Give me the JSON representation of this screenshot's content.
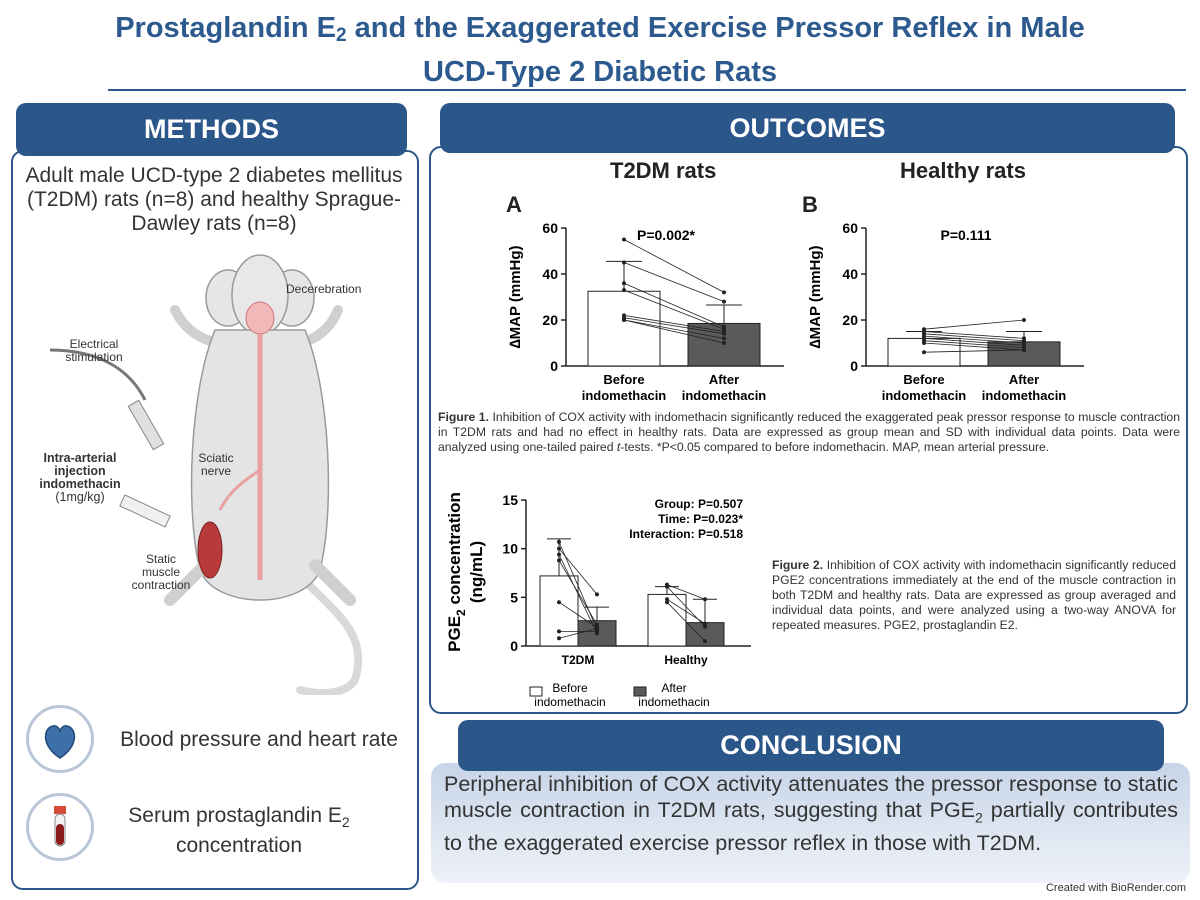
{
  "title": {
    "line1_pre": "Prostaglandin E",
    "line1_sub": "2",
    "line1_post": " and the Exaggerated Exercise Pressor Reflex in Male",
    "line2": "UCD-Type 2 Diabetic Rats"
  },
  "methods": {
    "heading": "METHODS",
    "subjects": "Adult male UCD-type 2 diabetes mellitus (T2DM) rats (n=8) and healthy Sprague-Dawley rats (n=8)",
    "labels": {
      "decerebration": "Decerebration",
      "electrical_line1": "Electrical",
      "electrical_line2": "stimulation",
      "sciatic_line1": "Sciatic",
      "sciatic_line2": "nerve",
      "injection_line1": "Intra-arterial",
      "injection_line2": "injection",
      "injection_line3": "indomethacin",
      "injection_line4": "(1mg/kg)",
      "static_line1": "Static",
      "static_line2": "muscle",
      "static_line3": "contraction"
    },
    "measure1": "Blood pressure and heart rate",
    "measure2_pre": "Serum prostaglandin E",
    "measure2_sub": "2",
    "measure2_line2": "concentration"
  },
  "outcomes": {
    "heading": "OUTCOMES",
    "figure1_caption_label": "Figure 1.",
    "figure1_caption": " Inhibition of COX activity with indomethacin significantly reduced the exaggerated peak pressor response to muscle contraction in T2DM rats and had no effect in healthy rats. Data are expressed as group mean and SD with individual data points. Data were analyzed using one-tailed paired ",
    "figure1_caption_italic": "t",
    "figure1_caption_end": "-tests. *P<0.05 compared to before indomethacin. MAP, mean arterial pressure.",
    "figure2_caption_label": "Figure 2.",
    "figure2_caption": " Inhibition of COX activity with indomethacin significantly reduced PGE2 concentrations immediately at the end of the muscle contraction in both T2DM and healthy rats. Data are expressed as group averaged and individual data points, and were analyzed using a two-way ANOVA for repeated measures. PGE2, prostaglandin E2."
  },
  "conclusion": {
    "heading": "CONCLUSION",
    "text_pre": "Peripheral inhibition of COX activity attenuates the pressor response to static muscle contraction in T2DM rats, suggesting that PGE",
    "text_sub": "2",
    "text_post": " partially contributes to the exaggerated exercise pressor reflex in those with T2DM."
  },
  "footer": "Created with BioRender.com",
  "colors": {
    "brand_blue": "#2b5689",
    "bar_after": "#5a5a5a",
    "bar_before": "#ffffff"
  },
  "chart_data": [
    {
      "type": "bar",
      "panel": "A",
      "heading": "T2DM rats",
      "ylabel": "∆MAP (mmHg)",
      "ylim": [
        0,
        60
      ],
      "yticks": [
        0,
        20,
        40,
        60
      ],
      "categories": [
        "Before indomethacin",
        "After indomethacin"
      ],
      "cat_line1": [
        "Before",
        "After"
      ],
      "cat_line2": [
        "indomethacin",
        "indomethacin"
      ],
      "means": [
        32.5,
        18.5
      ],
      "sd": [
        13,
        8
      ],
      "individual": [
        [
          55,
          45,
          36,
          33,
          22,
          21,
          20,
          20
        ],
        [
          32,
          28,
          17,
          16,
          15,
          14,
          12,
          10
        ]
      ],
      "annotation": "P=0.002*"
    },
    {
      "type": "bar",
      "panel": "B",
      "heading": "Healthy rats",
      "ylabel": "∆MAP (mmHg)",
      "ylim": [
        0,
        60
      ],
      "yticks": [
        0,
        20,
        40,
        60
      ],
      "categories": [
        "Before indomethacin",
        "After indomethacin"
      ],
      "cat_line1": [
        "Before",
        "After"
      ],
      "cat_line2": [
        "indomethacin",
        "indomethacin"
      ],
      "means": [
        12,
        10.5
      ],
      "sd": [
        3,
        4.5
      ],
      "individual": [
        [
          16,
          15,
          14,
          13,
          12,
          11,
          10,
          6
        ],
        [
          20,
          12,
          11,
          10,
          9,
          8,
          7,
          7
        ]
      ],
      "annotation": "P=0.111"
    },
    {
      "type": "bar",
      "ylabel_pre": "PGE",
      "ylabel_sub": "2",
      "ylabel_post": " concentration",
      "ylabel_line2": "(ng/mL)",
      "ylim": [
        0,
        15
      ],
      "yticks": [
        0,
        5,
        10,
        15
      ],
      "categories": [
        "T2DM",
        "Healthy"
      ],
      "series": [
        {
          "name": "Before indomethacin",
          "name_line1": "Before",
          "name_line2": "indomethacin",
          "values": [
            7.2,
            5.3
          ],
          "sd": [
            3.8,
            0.8
          ]
        },
        {
          "name": "After indomethacin",
          "name_line1": "After",
          "name_line2": "indomethacin",
          "values": [
            2.6,
            2.4
          ],
          "sd": [
            1.4,
            2.4
          ]
        }
      ],
      "individual": {
        "T2DM": [
          [
            10.7,
            1.7
          ],
          [
            10.0,
            5.3
          ],
          [
            9.4,
            1.3
          ],
          [
            8.8,
            2.2
          ],
          [
            4.5,
            1.9
          ],
          [
            1.5,
            1.5
          ],
          [
            0.8,
            1.8
          ]
        ],
        "Healthy": [
          [
            6.3,
            4.8
          ],
          [
            6.1,
            2.0
          ],
          [
            4.8,
            2.3
          ],
          [
            4.5,
            0.5
          ]
        ]
      },
      "stats": [
        "Group: P=0.507",
        "Time: P=0.023*",
        "Interaction: P=0.518"
      ],
      "legend": "bottom"
    }
  ]
}
